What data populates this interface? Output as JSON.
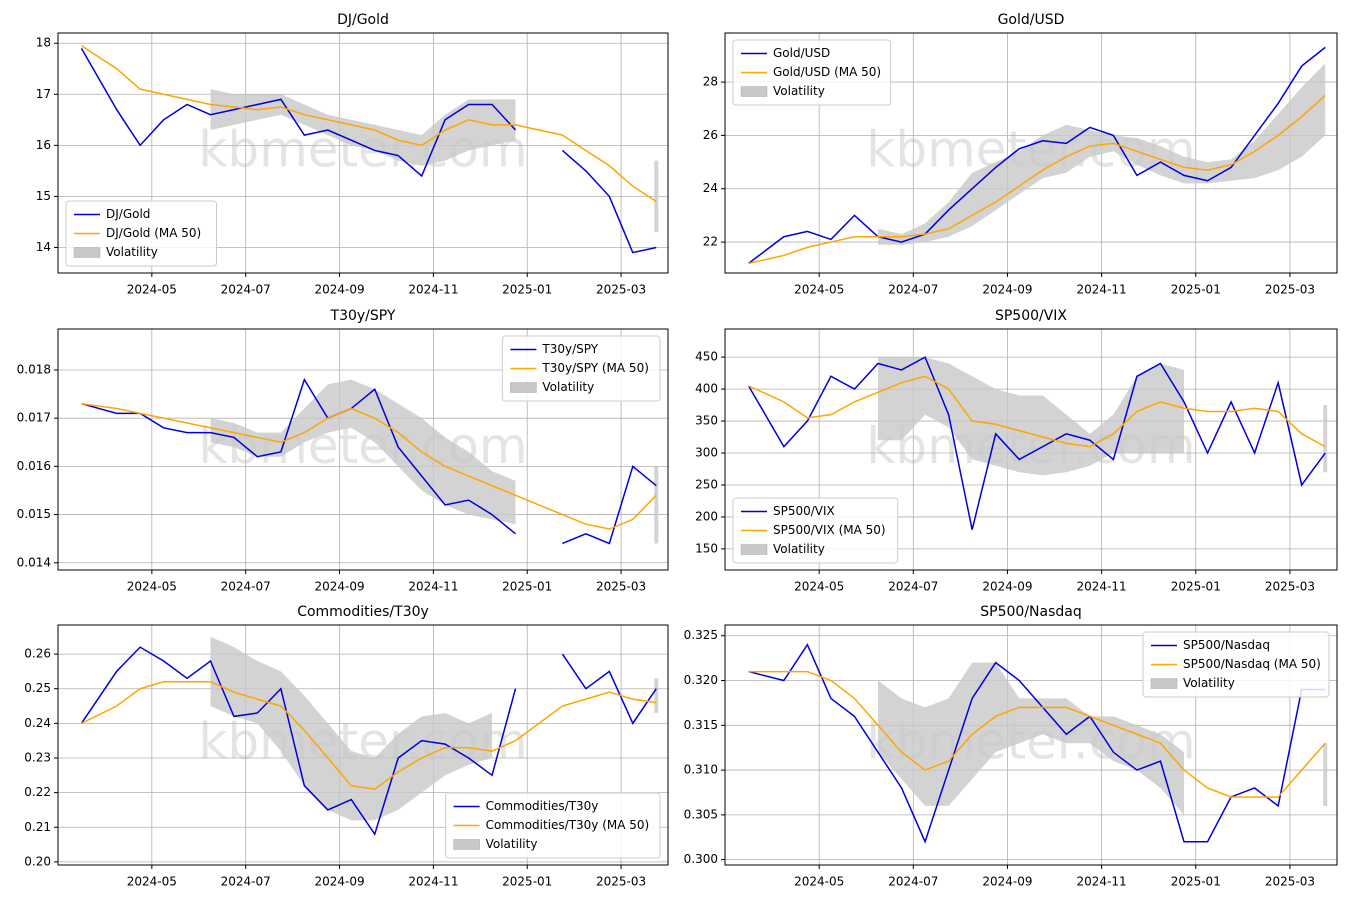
{
  "chart_data": [
    {
      "type": "line",
      "title": "DJ/Gold",
      "watermark": "kbmeter.com",
      "grid": true,
      "legend": "lower left",
      "x": [
        "2024-03",
        "2024-04",
        "2024-04",
        "2024-05",
        "2024-05",
        "2024-06",
        "2024-06",
        "2024-07",
        "2024-07",
        "2024-08",
        "2024-08",
        "2024-09",
        "2024-09",
        "2024-10",
        "2024-10",
        "2024-11",
        "2024-11",
        "2024-12",
        "2024-12",
        "2025-01",
        "2025-01",
        "2025-02",
        "2025-02",
        "2025-03",
        "2025-03"
      ],
      "xlim": [
        "2024-03",
        "2025-04"
      ],
      "xticks": [
        "2024-05",
        "2024-07",
        "2024-09",
        "2024-11",
        "2025-01",
        "2025-03"
      ],
      "ylim": [
        13.5,
        18.2
      ],
      "yticks": [
        14,
        15,
        16,
        17,
        18
      ],
      "series": [
        {
          "name": "DJ/Gold",
          "color": "#0000dd",
          "values": [
            17.9,
            16.7,
            16.0,
            16.5,
            16.8,
            16.6,
            16.7,
            16.8,
            16.9,
            16.2,
            16.3,
            16.1,
            15.9,
            15.8,
            15.4,
            16.5,
            16.8,
            16.8,
            16.3,
            null,
            15.9,
            15.5,
            15.0,
            13.9,
            14.0
          ]
        },
        {
          "name": "DJ/Gold (MA 50)",
          "color": "#ffa500",
          "values": [
            17.95,
            17.5,
            17.1,
            17.0,
            16.9,
            16.8,
            16.75,
            16.7,
            16.75,
            16.6,
            16.5,
            16.4,
            16.3,
            16.1,
            16.0,
            16.3,
            16.5,
            16.4,
            16.4,
            16.3,
            16.2,
            15.9,
            15.6,
            15.2,
            14.9
          ]
        },
        {
          "name": "Volatility",
          "color": "#c8c8c8",
          "lower": [
            null,
            null,
            null,
            null,
            null,
            16.3,
            16.4,
            16.5,
            16.6,
            16.4,
            16.2,
            16.0,
            15.9,
            15.7,
            15.6,
            15.7,
            15.9,
            16.0,
            16.1,
            null,
            null,
            null,
            null,
            null,
            14.3
          ],
          "upper": [
            null,
            null,
            null,
            null,
            null,
            17.1,
            17.0,
            17.0,
            17.0,
            16.8,
            16.6,
            16.5,
            16.4,
            16.3,
            16.2,
            16.6,
            16.9,
            16.9,
            16.9,
            null,
            null,
            null,
            null,
            null,
            15.7
          ]
        }
      ]
    },
    {
      "type": "line",
      "title": "Gold/USD",
      "watermark": "kbmeter.com",
      "grid": true,
      "legend": "upper left",
      "x": [
        "2024-03",
        "2024-04",
        "2024-04",
        "2024-05",
        "2024-05",
        "2024-06",
        "2024-06",
        "2024-07",
        "2024-07",
        "2024-08",
        "2024-08",
        "2024-09",
        "2024-09",
        "2024-10",
        "2024-10",
        "2024-11",
        "2024-11",
        "2024-12",
        "2024-12",
        "2025-01",
        "2025-01",
        "2025-02",
        "2025-02",
        "2025-03",
        "2025-03"
      ],
      "xlim": [
        "2024-03",
        "2025-04"
      ],
      "xticks": [
        "2024-05",
        "2024-07",
        "2024-09",
        "2024-11",
        "2025-01",
        "2025-03"
      ],
      "ylim": [
        20.84,
        29.84
      ],
      "yticks": [
        22,
        24,
        26,
        28
      ],
      "series": [
        {
          "name": "Gold/USD",
          "color": "#0000dd",
          "values": [
            21.2,
            22.2,
            22.4,
            22.1,
            23.0,
            22.2,
            22.0,
            22.3,
            23.2,
            24.0,
            24.8,
            25.5,
            25.8,
            25.7,
            26.3,
            26.0,
            24.5,
            25.0,
            24.5,
            24.3,
            24.8,
            26.0,
            27.2,
            28.6,
            29.3
          ]
        },
        {
          "name": "Gold/USD (MA 50)",
          "color": "#ffa500",
          "values": [
            21.2,
            21.5,
            21.8,
            22.0,
            22.2,
            22.2,
            22.2,
            22.3,
            22.5,
            23.0,
            23.5,
            24.1,
            24.7,
            25.2,
            25.6,
            25.7,
            25.4,
            25.1,
            24.8,
            24.7,
            24.9,
            25.4,
            26.0,
            26.7,
            27.5
          ]
        },
        {
          "name": "Volatility",
          "color": "#c8c8c8",
          "lower": [
            null,
            null,
            null,
            null,
            null,
            21.9,
            21.9,
            22.0,
            22.2,
            22.6,
            23.2,
            23.8,
            24.4,
            24.6,
            25.2,
            25.4,
            24.9,
            24.5,
            24.2,
            24.2,
            24.3,
            24.4,
            24.7,
            25.2,
            26.0
          ],
          "upper": [
            null,
            null,
            null,
            null,
            null,
            22.5,
            22.3,
            22.7,
            23.5,
            24.6,
            25.0,
            25.4,
            26.0,
            26.4,
            26.2,
            26.0,
            25.9,
            25.6,
            25.2,
            25.0,
            25.1,
            25.8,
            26.8,
            27.8,
            28.7
          ]
        }
      ]
    },
    {
      "type": "line",
      "title": "T30y/SPY",
      "watermark": "kbmeter.com",
      "grid": true,
      "legend": "upper right",
      "x": [
        "2024-03",
        "2024-04",
        "2024-04",
        "2024-05",
        "2024-05",
        "2024-06",
        "2024-06",
        "2024-07",
        "2024-07",
        "2024-08",
        "2024-08",
        "2024-09",
        "2024-09",
        "2024-10",
        "2024-10",
        "2024-11",
        "2024-11",
        "2024-12",
        "2024-12",
        "2025-01",
        "2025-01",
        "2025-02",
        "2025-02",
        "2025-03",
        "2025-03"
      ],
      "xlim": [
        "2024-03",
        "2025-04"
      ],
      "xticks": [
        "2024-05",
        "2024-07",
        "2024-09",
        "2024-11",
        "2025-01",
        "2025-03"
      ],
      "ylim": [
        0.01385,
        0.01885
      ],
      "yticks": [
        0.014,
        0.015,
        0.016,
        0.017,
        0.018
      ],
      "series": [
        {
          "name": "T30y/SPY",
          "color": "#0000dd",
          "values": [
            0.0173,
            0.0171,
            0.0171,
            0.0168,
            0.0167,
            0.0167,
            0.0166,
            0.0162,
            0.0163,
            0.0178,
            0.017,
            0.0172,
            0.0176,
            0.0164,
            0.0158,
            0.0152,
            0.0153,
            0.015,
            0.0146,
            null,
            0.0144,
            0.0146,
            0.0144,
            0.016,
            0.0156
          ]
        },
        {
          "name": "T30y/SPY (MA 50)",
          "color": "#ffa500",
          "values": [
            0.0173,
            0.0172,
            0.0171,
            0.017,
            0.0169,
            0.0168,
            0.0167,
            0.0166,
            0.0165,
            0.0167,
            0.017,
            0.0172,
            0.017,
            0.0167,
            0.0163,
            0.016,
            0.0158,
            0.0156,
            0.0154,
            0.0152,
            0.015,
            0.0148,
            0.0147,
            0.0149,
            0.0154
          ]
        },
        {
          "name": "Volatility",
          "color": "#c8c8c8",
          "lower": [
            null,
            null,
            null,
            null,
            null,
            0.0165,
            0.0164,
            0.0162,
            0.0162,
            0.0165,
            0.0167,
            0.0168,
            0.0165,
            0.016,
            0.0155,
            0.0152,
            0.015,
            0.0149,
            0.0148,
            null,
            null,
            null,
            null,
            null,
            0.0144
          ],
          "upper": [
            null,
            null,
            null,
            null,
            null,
            0.017,
            0.0169,
            0.0167,
            0.0167,
            0.0172,
            0.0177,
            0.0178,
            0.0176,
            0.0173,
            0.017,
            0.0166,
            0.0163,
            0.0159,
            0.0157,
            null,
            null,
            null,
            null,
            null,
            0.016
          ]
        }
      ]
    },
    {
      "type": "line",
      "title": "SP500/VIX",
      "watermark": "kbmeter.com",
      "grid": true,
      "legend": "lower left",
      "x": [
        "2024-03",
        "2024-04",
        "2024-04",
        "2024-05",
        "2024-05",
        "2024-06",
        "2024-06",
        "2024-07",
        "2024-07",
        "2024-08",
        "2024-08",
        "2024-09",
        "2024-09",
        "2024-10",
        "2024-10",
        "2024-11",
        "2024-11",
        "2024-12",
        "2024-12",
        "2025-01",
        "2025-01",
        "2025-02",
        "2025-02",
        "2025-03",
        "2025-03"
      ],
      "xlim": [
        "2024-03",
        "2025-04"
      ],
      "xticks": [
        "2024-05",
        "2024-07",
        "2024-09",
        "2024-11",
        "2025-01",
        "2025-03"
      ],
      "ylim": [
        117,
        494
      ],
      "yticks": [
        150,
        200,
        250,
        300,
        350,
        400,
        450
      ],
      "series": [
        {
          "name": "SP500/VIX",
          "color": "#0000dd",
          "values": [
            405,
            310,
            350,
            420,
            400,
            440,
            430,
            450,
            360,
            180,
            330,
            290,
            310,
            330,
            320,
            290,
            420,
            440,
            380,
            300,
            380,
            300,
            410,
            250,
            300
          ]
        },
        {
          "name": "SP500/VIX (MA 50)",
          "color": "#ffa500",
          "values": [
            405,
            380,
            355,
            360,
            380,
            395,
            410,
            420,
            400,
            350,
            345,
            335,
            325,
            315,
            310,
            330,
            365,
            380,
            370,
            365,
            365,
            370,
            365,
            330,
            310
          ]
        },
        {
          "name": "Volatility",
          "color": "#c8c8c8",
          "lower": [
            null,
            null,
            null,
            null,
            null,
            320,
            320,
            360,
            340,
            290,
            280,
            270,
            265,
            270,
            280,
            300,
            300,
            300,
            300,
            null,
            null,
            null,
            null,
            null,
            270
          ],
          "upper": [
            null,
            null,
            null,
            null,
            null,
            450,
            450,
            450,
            440,
            420,
            400,
            390,
            390,
            360,
            330,
            360,
            420,
            440,
            430,
            null,
            null,
            null,
            null,
            null,
            375
          ]
        }
      ]
    },
    {
      "type": "line",
      "title": "Commodities/T30y",
      "watermark": "kbmeter.com",
      "grid": true,
      "legend": "lower right",
      "x": [
        "2024-03",
        "2024-04",
        "2024-04",
        "2024-05",
        "2024-05",
        "2024-06",
        "2024-06",
        "2024-07",
        "2024-07",
        "2024-08",
        "2024-08",
        "2024-09",
        "2024-09",
        "2024-10",
        "2024-10",
        "2024-11",
        "2024-11",
        "2024-12",
        "2024-12",
        "2025-01",
        "2025-01",
        "2025-02",
        "2025-02",
        "2025-03",
        "2025-03"
      ],
      "xlim": [
        "2024-03",
        "2025-04"
      ],
      "xticks": [
        "2024-05",
        "2024-07",
        "2024-09",
        "2024-11",
        "2025-01",
        "2025-03"
      ],
      "ylim": [
        0.1991,
        0.2684
      ],
      "yticks": [
        {
          "value": 0.2,
          "label": "0.20"
        },
        0.21,
        0.22,
        0.23,
        0.24,
        0.25,
        0.26
      ],
      "series": [
        {
          "name": "Commodities/T30y",
          "color": "#0000dd",
          "values": [
            0.24,
            0.255,
            0.262,
            0.258,
            0.253,
            0.258,
            0.242,
            0.243,
            0.25,
            0.222,
            0.215,
            0.218,
            0.208,
            0.23,
            0.235,
            0.234,
            0.23,
            0.225,
            0.25,
            null,
            0.26,
            0.25,
            0.255,
            0.24,
            0.25
          ]
        },
        {
          "name": "Commodities/T30y (MA 50)",
          "color": "#ffa500",
          "values": [
            0.24,
            0.245,
            0.25,
            0.252,
            0.252,
            0.252,
            0.249,
            0.247,
            0.245,
            0.238,
            0.23,
            0.222,
            0.221,
            0.226,
            0.23,
            0.233,
            0.233,
            0.232,
            0.235,
            0.24,
            0.245,
            0.247,
            0.249,
            0.247,
            0.246
          ]
        },
        {
          "name": "Volatility",
          "color": "#c8c8c8",
          "lower": [
            null,
            null,
            null,
            null,
            null,
            0.245,
            0.242,
            0.24,
            0.232,
            0.222,
            0.215,
            0.212,
            0.212,
            0.215,
            0.22,
            0.225,
            0.228,
            0.23,
            null,
            null,
            null,
            null,
            null,
            null,
            0.243
          ],
          "upper": [
            null,
            null,
            null,
            null,
            null,
            0.265,
            0.262,
            0.258,
            0.255,
            0.248,
            0.24,
            0.232,
            0.23,
            0.237,
            0.242,
            0.243,
            0.24,
            0.243,
            null,
            null,
            null,
            null,
            null,
            null,
            0.253
          ]
        }
      ]
    },
    {
      "type": "line",
      "title": "SP500/Nasdaq",
      "watermark": "kbmeter.com",
      "grid": true,
      "legend": "upper right",
      "x": [
        "2024-03",
        "2024-04",
        "2024-04",
        "2024-05",
        "2024-05",
        "2024-06",
        "2024-06",
        "2024-07",
        "2024-07",
        "2024-08",
        "2024-08",
        "2024-09",
        "2024-09",
        "2024-10",
        "2024-10",
        "2024-11",
        "2024-11",
        "2024-12",
        "2024-12",
        "2025-01",
        "2025-01",
        "2025-02",
        "2025-02",
        "2025-03",
        "2025-03"
      ],
      "xlim": [
        "2024-03",
        "2025-04"
      ],
      "xticks": [
        "2024-05",
        "2024-07",
        "2024-09",
        "2024-11",
        "2025-01",
        "2025-03"
      ],
      "ylim": [
        0.2994,
        0.3262
      ],
      "yticks": [
        {
          "value": 0.3,
          "label": "0.300"
        },
        0.305,
        {
          "value": 0.31,
          "label": "0.310"
        },
        0.315,
        {
          "value": 0.32,
          "label": "0.320"
        },
        0.325
      ],
      "series": [
        {
          "name": "SP500/Nasdaq",
          "color": "#0000dd",
          "values": [
            0.321,
            0.32,
            0.324,
            0.318,
            0.316,
            0.312,
            0.308,
            0.302,
            0.31,
            0.318,
            0.322,
            0.32,
            0.317,
            0.314,
            0.316,
            0.312,
            0.31,
            0.311,
            0.302,
            0.302,
            0.307,
            0.308,
            0.306,
            0.319,
            0.319
          ]
        },
        {
          "name": "SP500/Nasdaq (MA 50)",
          "color": "#ffa500",
          "values": [
            0.321,
            0.321,
            0.321,
            0.32,
            0.318,
            0.315,
            0.312,
            0.31,
            0.311,
            0.314,
            0.316,
            0.317,
            0.317,
            0.317,
            0.316,
            0.315,
            0.314,
            0.313,
            0.31,
            0.308,
            0.307,
            0.307,
            0.307,
            0.31,
            0.313
          ]
        },
        {
          "name": "Volatility",
          "color": "#c8c8c8",
          "lower": [
            null,
            null,
            null,
            null,
            null,
            0.312,
            0.309,
            0.306,
            0.306,
            0.309,
            0.312,
            0.313,
            0.314,
            0.313,
            0.313,
            0.311,
            0.31,
            0.308,
            0.305,
            null,
            null,
            null,
            null,
            null,
            0.306
          ],
          "upper": [
            null,
            null,
            null,
            null,
            null,
            0.32,
            0.318,
            0.317,
            0.318,
            0.322,
            0.322,
            0.318,
            0.318,
            0.318,
            0.316,
            0.316,
            0.315,
            0.314,
            0.312,
            null,
            null,
            null,
            null,
            null,
            0.313
          ]
        }
      ]
    }
  ]
}
